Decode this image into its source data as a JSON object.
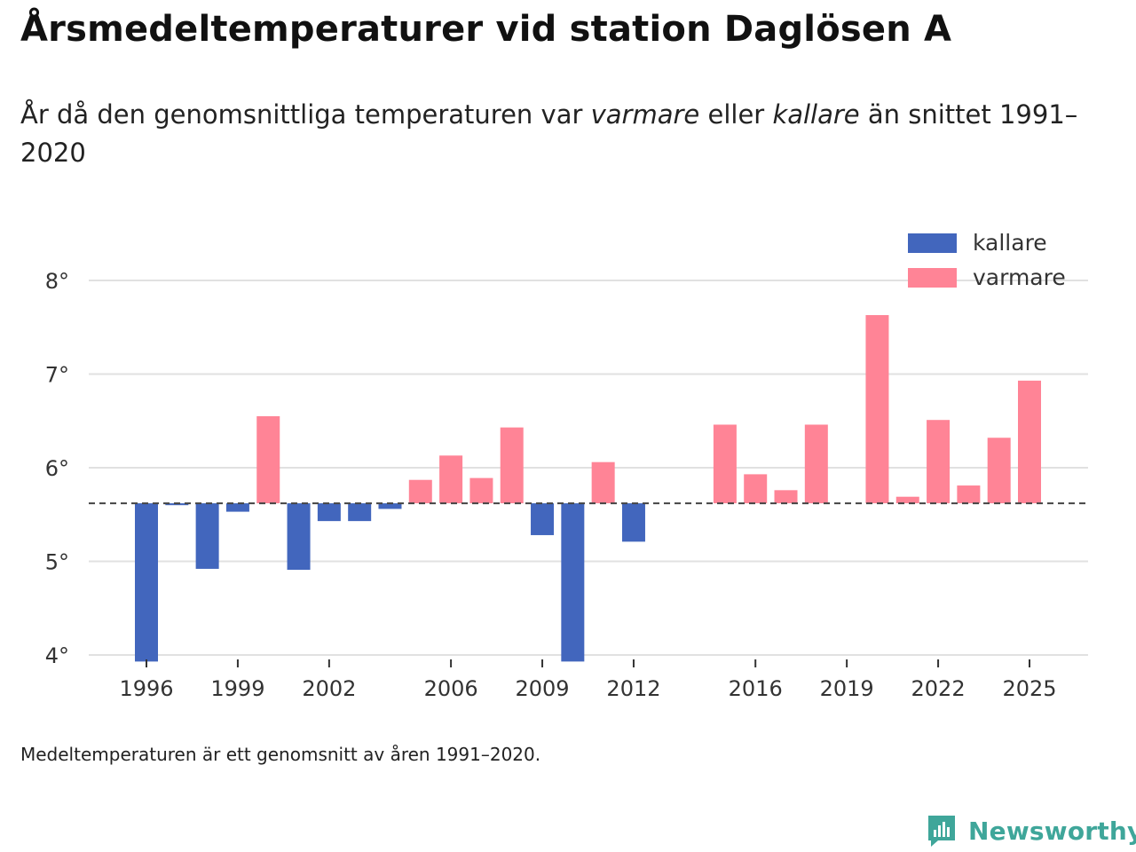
{
  "header": {
    "title": "Årsmedeltemperaturer vid station Daglösen A",
    "subtitle_part1": "År då den genomsnittliga temperaturen var ",
    "subtitle_warm": "varmare",
    "subtitle_part2": " eller ",
    "subtitle_cold": "kallare",
    "subtitle_part3": " än snittet 1991–2020"
  },
  "footer": {
    "note": "Medeltemperaturen är ett genomsnitt av åren 1991–2020.",
    "brand": "Newsworthy"
  },
  "colors": {
    "kallare": "#4266bd",
    "varmare": "#ff8496",
    "grid": "#e1e1e1",
    "reference": "#444444"
  },
  "chart_data": {
    "type": "bar",
    "title": "Årsmedeltemperaturer vid station Daglösen A",
    "ylabel": "",
    "xlabel": "",
    "ylim": [
      4,
      8
    ],
    "xlim": [
      1995,
      2026
    ],
    "y_ticks": [
      4,
      5,
      6,
      7,
      8
    ],
    "y_tick_suffix": "°",
    "x_ticks": [
      1996,
      1999,
      2002,
      2006,
      2009,
      2012,
      2016,
      2019,
      2022,
      2025
    ],
    "baseline": 5.62,
    "baseline_label": "snittet 1991–2020",
    "legend": [
      {
        "key": "kallare",
        "label": "kallare"
      },
      {
        "key": "varmare",
        "label": "varmare"
      }
    ],
    "legend_position": "top-right",
    "series": [
      {
        "year": 1996,
        "value": 3.93,
        "category": "kallare"
      },
      {
        "year": 1997,
        "value": 5.6,
        "category": "kallare"
      },
      {
        "year": 1998,
        "value": 4.92,
        "category": "kallare"
      },
      {
        "year": 1999,
        "value": 5.53,
        "category": "kallare"
      },
      {
        "year": 2000,
        "value": 6.55,
        "category": "varmare"
      },
      {
        "year": 2001,
        "value": 4.91,
        "category": "kallare"
      },
      {
        "year": 2002,
        "value": 5.43,
        "category": "kallare"
      },
      {
        "year": 2003,
        "value": 5.43,
        "category": "kallare"
      },
      {
        "year": 2004,
        "value": 5.56,
        "category": "kallare"
      },
      {
        "year": 2005,
        "value": 5.87,
        "category": "varmare"
      },
      {
        "year": 2006,
        "value": 6.13,
        "category": "varmare"
      },
      {
        "year": 2007,
        "value": 5.89,
        "category": "varmare"
      },
      {
        "year": 2008,
        "value": 6.43,
        "category": "varmare"
      },
      {
        "year": 2009,
        "value": 5.28,
        "category": "kallare"
      },
      {
        "year": 2010,
        "value": 3.93,
        "category": "kallare"
      },
      {
        "year": 2011,
        "value": 6.06,
        "category": "varmare"
      },
      {
        "year": 2012,
        "value": 5.21,
        "category": "kallare"
      },
      {
        "year": 2015,
        "value": 6.46,
        "category": "varmare"
      },
      {
        "year": 2016,
        "value": 5.93,
        "category": "varmare"
      },
      {
        "year": 2017,
        "value": 5.76,
        "category": "varmare"
      },
      {
        "year": 2018,
        "value": 6.46,
        "category": "varmare"
      },
      {
        "year": 2020,
        "value": 7.63,
        "category": "varmare"
      },
      {
        "year": 2021,
        "value": 5.69,
        "category": "varmare"
      },
      {
        "year": 2022,
        "value": 6.51,
        "category": "varmare"
      },
      {
        "year": 2023,
        "value": 5.81,
        "category": "varmare"
      },
      {
        "year": 2024,
        "value": 6.32,
        "category": "varmare"
      },
      {
        "year": 2025,
        "value": 6.93,
        "category": "varmare"
      }
    ]
  }
}
